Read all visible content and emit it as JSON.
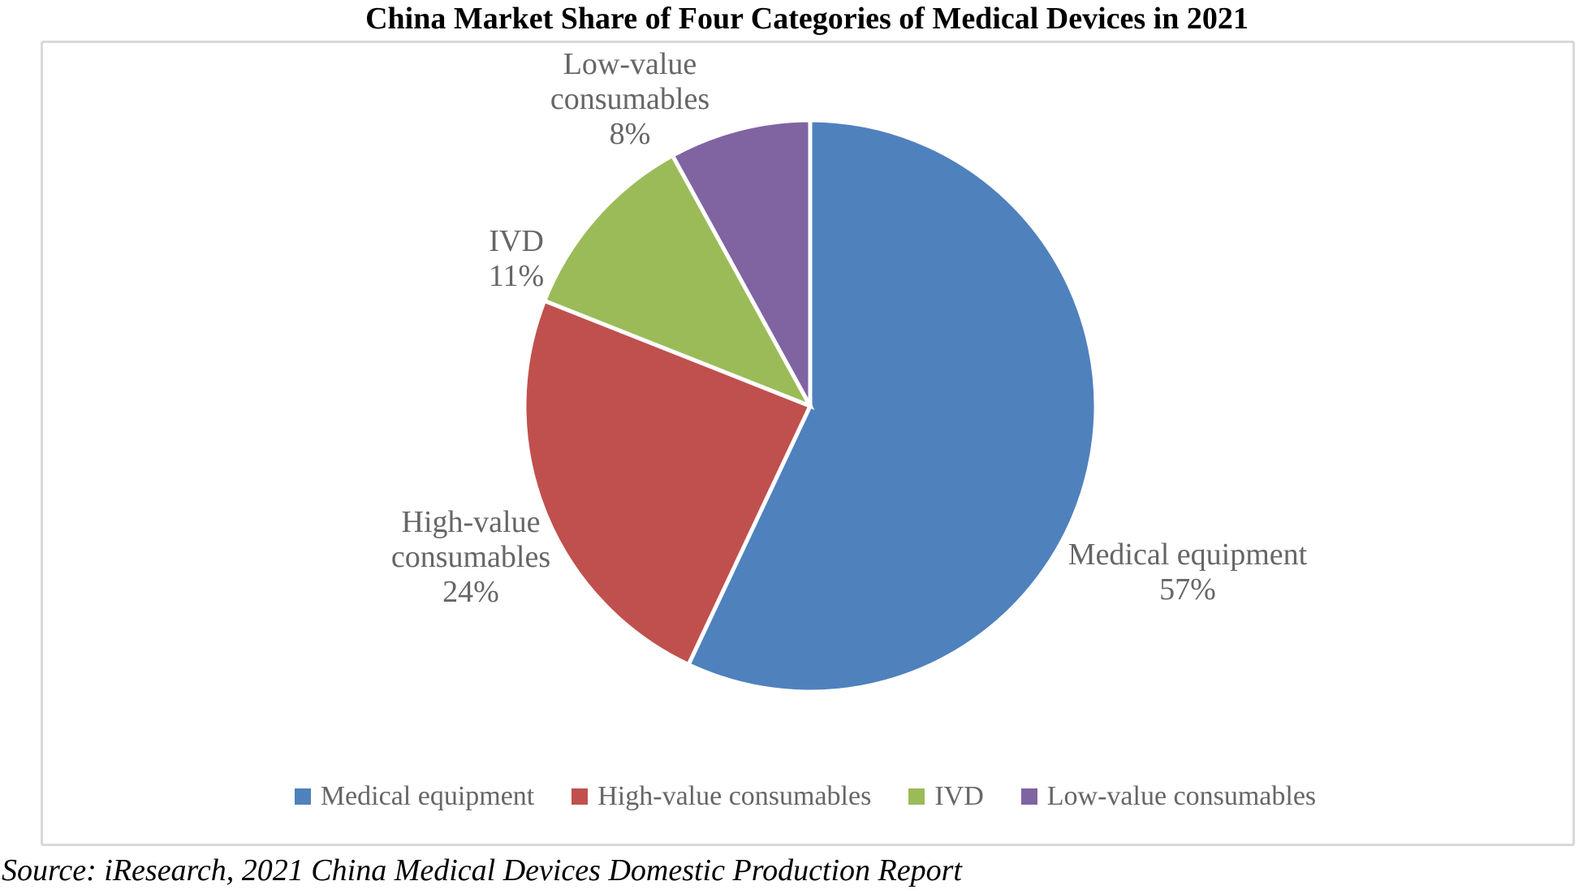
{
  "title": "China Market Share of Four Categories of Medical Devices in 2021",
  "source_note": "Source: iResearch, 2021 China Medical Devices Domestic Production Report",
  "colors": {
    "medical_equipment": "#4F81BD",
    "high_value_consumables": "#C0504D",
    "ivd": "#9BBB59",
    "low_value_consumables": "#8064A2",
    "label_text": "#666666",
    "chart_border": "#D9D9D9",
    "slice_separator": "#FFFFFF"
  },
  "chart_data": {
    "type": "pie",
    "title": "China Market Share of Four Categories of Medical Devices in 2021",
    "unit": "percent",
    "start_angle_deg": 0,
    "direction": "clockwise",
    "labels_position": "outside",
    "legend_position": "bottom",
    "grid": false,
    "slices": [
      {
        "name": "Medical equipment",
        "value": 57,
        "pct_label": "57%",
        "color": "#4F81BD"
      },
      {
        "name": "High-value consumables",
        "value": 24,
        "pct_label": "24%",
        "color": "#C0504D"
      },
      {
        "name": "IVD",
        "value": 11,
        "pct_label": "11%",
        "color": "#9BBB59"
      },
      {
        "name": "Low-value consumables",
        "value": 8,
        "pct_label": "8%",
        "color": "#8064A2"
      }
    ]
  }
}
